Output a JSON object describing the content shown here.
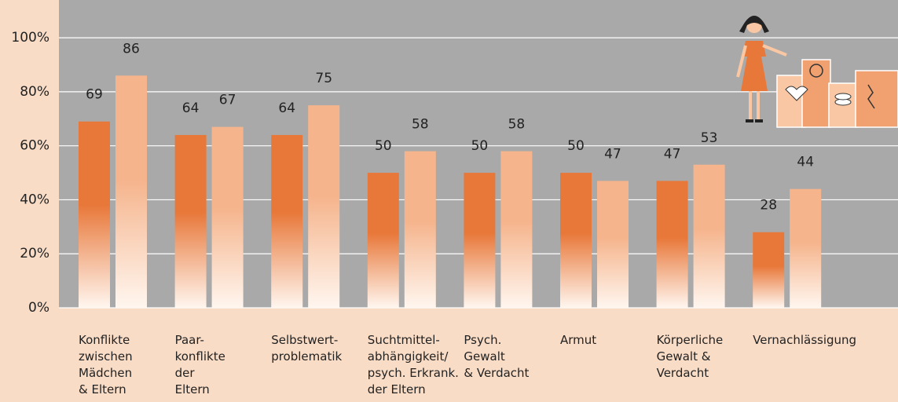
{
  "chart_data": {
    "type": "bar",
    "categories": [
      "Konflikte\nzwischen\nMädchen\n& Eltern",
      "Paar-\nkonflikte\nder\nEltern",
      "Selbstwert-\nproblematik",
      "Suchtmittel-\nabhängigkeit/\npsych. Erkrank.\nder Eltern",
      "Psych.\nGewalt\n& Verdacht",
      "Armut",
      "Körperliche\nGewalt &\nVerdacht",
      "Vernachlässigung"
    ],
    "series": [
      {
        "color": "#e8783a",
        "values": [
          69,
          64,
          64,
          50,
          50,
          50,
          47,
          28
        ]
      },
      {
        "color": "#f5b48c",
        "values": [
          86,
          67,
          75,
          58,
          58,
          47,
          53,
          44
        ]
      }
    ],
    "ylim": [
      0,
      114
    ],
    "yticks": [
      {
        "value": 0,
        "label": "0%"
      },
      {
        "value": 20,
        "label": "20%"
      },
      {
        "value": 40,
        "label": "40%"
      },
      {
        "value": 60,
        "label": "60%"
      },
      {
        "value": 80,
        "label": "80%"
      },
      {
        "value": 100,
        "label": "100%"
      }
    ],
    "grid": true
  }
}
